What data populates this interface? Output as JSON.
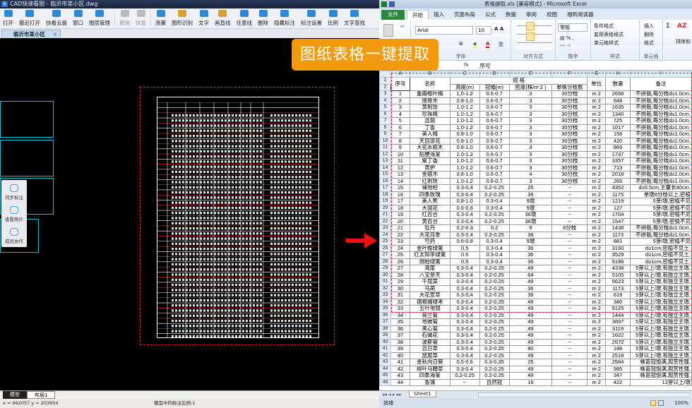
{
  "cad": {
    "title": "CAD快速看图 - 临沂市某小区.dwg",
    "toolbar": [
      {
        "label": "打开",
        "icon": "folder-open-icon",
        "color": "#2a8ad8",
        "enabled": true
      },
      {
        "label": "最近打开",
        "icon": "clock-icon",
        "color": "#2a8ad8",
        "enabled": true
      },
      {
        "label": "快看云盘",
        "icon": "cloud-icon",
        "color": "#2a8ad8",
        "enabled": true
      },
      {
        "label": "窗口",
        "icon": "window-icon",
        "color": "#2a8ad8",
        "enabled": true
      },
      {
        "label": "图层管理",
        "icon": "layers-icon",
        "color": "#2a8ad8",
        "enabled": true
      },
      {
        "label": "撤销",
        "icon": "undo-icon",
        "color": "#bbbbbb",
        "enabled": false
      },
      {
        "label": "恢复",
        "icon": "redo-icon",
        "color": "#bbbbbb",
        "enabled": false
      },
      {
        "label": "测量",
        "icon": "ruler-icon",
        "color": "#2a8ad8",
        "enabled": true
      },
      {
        "label": "图形识别",
        "icon": "image-recognize-icon",
        "color": "#e0a030",
        "enabled": true
      },
      {
        "label": "文字",
        "icon": "text-icon",
        "color": "#2a8ad8",
        "enabled": true
      },
      {
        "label": "画直线",
        "icon": "line-icon",
        "color": "#d8a030",
        "enabled": true
      },
      {
        "label": "任意线",
        "icon": "pen-icon",
        "color": "#2a8ad8",
        "enabled": true
      },
      {
        "label": "删除",
        "icon": "eraser-icon",
        "color": "#2a8ad8",
        "enabled": true
      },
      {
        "label": "隐藏标注",
        "icon": "eye-hide-icon",
        "color": "#2a8ad8",
        "enabled": true
      },
      {
        "label": "标注设置",
        "icon": "annotation-settings-icon",
        "color": "#2a8ad8",
        "enabled": true
      },
      {
        "label": "比例",
        "icon": "scale-icon",
        "color": "#2a8ad8",
        "enabled": true
      },
      {
        "label": "文字查找",
        "icon": "text-search-icon",
        "color": "#2a8ad8",
        "enabled": true
      }
    ],
    "doc_tab": "临沂市某小区",
    "side_panel": [
      {
        "label": "同步标注",
        "icon": "sync-icon"
      },
      {
        "label": "查看照片",
        "icon": "photo-icon"
      },
      {
        "label": "成员协作",
        "icon": "members-icon"
      }
    ],
    "layout_tabs": [
      "模型",
      "布局1"
    ],
    "status_coords": "x = 662057  y = 203954",
    "status_scale": "模型中的标注比例:1"
  },
  "banner": "图纸表格一键提取",
  "excel": {
    "title": "表格提取.xls  [兼容模式] - Microsoft Excel",
    "tabs": [
      "文件",
      "开始",
      "插入",
      "页面布局",
      "公式",
      "数据",
      "审阅",
      "视图",
      "福昕阅读器"
    ],
    "active_tab": "开始",
    "font_name": "Arial",
    "font_size": "10",
    "number_format": "常规",
    "styles": [
      "条件格式",
      "套用表格格式",
      "单元格样式"
    ],
    "cells": [
      "插入",
      "删除",
      "格式"
    ],
    "sort_label": "排序和",
    "groups": [
      "字体",
      "对齐方式",
      "数字",
      "样式",
      "单元格"
    ],
    "formula_value": "序号",
    "columns": [
      "A",
      "B",
      "C",
      "D",
      "E",
      "F",
      "G",
      "H",
      "I"
    ],
    "header": {
      "seq": "序号",
      "name": "名称",
      "spec": "规 格",
      "height": "高度(m)",
      "crown": "冠幅(m)",
      "density": "密度(株/m 2 )",
      "branches": "单株分枝数",
      "unit": "单位",
      "qty": "数量",
      "remark": "备注"
    },
    "unit": "m 2",
    "rows": [
      [
        "1",
        "重瓣榆叶梅",
        "1.0-1.2",
        "0.6-0.7",
        "3",
        "30分枝",
        "2656",
        "不拼栽,每分枝d≥1.0cm,"
      ],
      [
        "2",
        "接骨木",
        "0.8-1.0",
        "0.6-0.7",
        "3",
        "30分枝",
        "648",
        "不拼栽,每分枝d≥1.0cm,"
      ],
      [
        "3",
        "黄刺玫",
        "1.0-1.2",
        "0.6-0.7",
        "3",
        "30分枝",
        "1635",
        "不拼栽,每分枝d≥1.0cm,"
      ],
      [
        "4",
        "珍珠梅",
        "1.0-1.2",
        "0.6-0.7",
        "3",
        "30分枝",
        "1340",
        "不拼栽,每分枝d≥1.0cm,"
      ],
      [
        "5",
        "连翘",
        "1.0-1.2",
        "0.6-0.7",
        "3",
        "30分枝",
        "725",
        "不拼栽,每分枝d≥1.0cm,"
      ],
      [
        "6",
        "丁香",
        "1.0-1.2",
        "0.6-0.7",
        "3",
        "30分枝",
        "1017",
        "不拼栽,每分枝d≥1.0cm,"
      ],
      [
        "7",
        "美人梅",
        "0.8-1.0",
        "0.6-0.7",
        "3",
        "30分枝",
        "156",
        "不拼栽,每分枝d≥1.0cm,"
      ],
      [
        "8",
        "天目琼花",
        "0.8-1.0",
        "0.6-0.7",
        "3",
        "30分枝",
        "420",
        "不拼栽,每分枝d≥1.0cm,"
      ],
      [
        "9",
        "大花水桠木",
        "0.8-1.0",
        "0.6-0.7",
        "3",
        "30分枝",
        "869",
        "不拼栽,每分枝d≥1.0cm,"
      ],
      [
        "10",
        "贴梗海棠",
        "1.0-1.2",
        "0.6-0.7",
        "3",
        "30分枝",
        "1737",
        "不拼栽,每分枝d≥1.0cm,"
      ],
      [
        "11",
        "紫丁香",
        "1.0-1.2",
        "0.6-0.7",
        "3",
        "30分枝",
        "3357",
        "不拼栽,每分枝d≥1.0cm,"
      ],
      [
        "12",
        "黄栌",
        "1.0-1.2",
        "0.6-0.7",
        "3",
        "30分枝",
        "713",
        "不拼栽,每分枝d≥1.0cm,"
      ],
      [
        "13",
        "金银木",
        "0.8-1.0",
        "0.6-0.7",
        "4",
        "30分枝",
        "2018",
        "不拼栽,每分枝d≥1.0cm,"
      ],
      [
        "14",
        "红刺玫",
        "1.0-1.2",
        "0.6-0.7",
        "3",
        "30分枝",
        "265",
        "不拼栽,每分枝d≥1.0cm,"
      ],
      [
        "15",
        "铺地柏",
        "0.3-0.4",
        "0.2-0.25",
        "25",
        "--",
        "4352",
        "d≥0.5cm,主蔓长40cm,"
      ],
      [
        "16",
        "四季玫瑰",
        "0.3-0.4",
        "0.2-0.25",
        "36",
        "--",
        "1175",
        "单墩8分枝以上,密植"
      ],
      [
        "17",
        "美人蕉",
        "0.8-1.0",
        "0.3-0.4",
        "9墩",
        "--",
        "1219",
        "5芽/墩,密植不见"
      ],
      [
        "18",
        "大丽花",
        "0.6-0.8",
        "0.3-0.4",
        "9墩",
        "--",
        "127",
        "5芽/墩,密植不见"
      ],
      [
        "19",
        "红百合",
        "0.3-0.4",
        "0.2-0.25",
        "36墩",
        "--",
        "1704",
        "5芽/墩,密植不见"
      ],
      [
        "20",
        "黄百合",
        "0.3-0.4",
        "0.2-0.25",
        "36墩",
        "--",
        "1547",
        "5芽/墩,密植不见"
      ],
      [
        "21",
        "牡丹",
        "0.2-0.3",
        "0.2",
        "9",
        "6分枝",
        "1438",
        "不拼栽,每分枝d≥1.0cm,"
      ],
      [
        "22",
        "大花月季",
        "0.3-0.4",
        "0.2-0.25",
        "36",
        "--",
        "1173",
        "不拼栽,每分枝d≥1.0cm,"
      ],
      [
        "23",
        "芍药",
        "0.6-0.8",
        "0.3-0.4",
        "9墩",
        "--",
        "881",
        "5芽/墩,密植不见"
      ],
      [
        "24",
        "金叶榆绿篱",
        "0.5",
        "0.3-0.4",
        "36",
        "--",
        "3190",
        "d≥1cm,密植不见土,"
      ],
      [
        "25",
        "红太阳李绿篱",
        "0.5",
        "0.3-0.4",
        "36",
        "--",
        "3529",
        "d≥1cm,密植不见土,"
      ],
      [
        "26",
        "侧柏绿篱",
        "0.5",
        "0.3-0.4",
        "36",
        "--",
        "5186",
        "d≥1cm,密植不见土,"
      ],
      [
        "27",
        "鸢尾",
        "0.3-0.4",
        "0.2-0.25",
        "49",
        "--",
        "4338",
        "5芽以上/墩,有独立主墩,"
      ],
      [
        "28",
        "八宝景天",
        "0.3-0.4",
        "0.2-0.25",
        "64",
        "--",
        "5105",
        "5芽以上/墩,有独立主墩,"
      ],
      [
        "29",
        "千屈菜",
        "0.3-0.4",
        "0.2-0.25",
        "49",
        "--",
        "5623",
        "5芽以上/墩,有独立主墩,"
      ],
      [
        "30",
        "马蔺",
        "0.3-0.4",
        "0.2-0.25",
        "36",
        "--",
        "1173",
        "5芽以上/墩,有独立主墩,"
      ],
      [
        "31",
        "大花萱草",
        "0.3-0.4",
        "0.2-0.25",
        "36",
        "--",
        "619",
        "5芽以上/墩,有独立主墩,"
      ],
      [
        "32",
        "宿根福禄考",
        "0.3-0.4",
        "0.2-0.25",
        "49",
        "--",
        "380",
        "5芽以上/墩,有独立主墩,"
      ],
      [
        "33",
        "五叶地锦",
        "0.3-0.4",
        "0.2-0.25",
        "49",
        "--",
        "9125",
        "5芽以上/墩,有独立主墩,"
      ],
      [
        "34",
        "荷兰菊",
        "0.3-0.4",
        "0.2-0.25",
        "49",
        "--",
        "1444",
        "5芽以上/墩,有独立主墩,"
      ],
      [
        "35",
        "地被菊",
        "0.3-0.4",
        "0.2-0.25",
        "49",
        "--",
        "3897",
        "5芽以上/墩,有独立主墩,"
      ],
      [
        "36",
        "黑心菊",
        "0.3-0.4",
        "0.2-0.25",
        "49",
        "--",
        "3119",
        "5芽以上/墩,有独立主墩,"
      ],
      [
        "37",
        "石碱花",
        "0.3-0.4",
        "0.2-0.25",
        "49",
        "--",
        "1622",
        "5芽以上/墩,有独立主墩,"
      ],
      [
        "38",
        "波斯菊",
        "0.3-0.4",
        "0.2-0.25",
        "49",
        "--",
        "2572",
        "5芽以上/墩,有独立主墩,"
      ],
      [
        "39",
        "百日草",
        "0.3-0.4",
        "0.2-0.25",
        "80",
        "--",
        "188",
        "5芽以上/墩,有独立主墩,"
      ],
      [
        "40",
        "鼠尾草",
        "0.3-0.4",
        "0.2-0.25",
        "49",
        "--",
        "2518",
        "5芽以上/墩,有独立主墩,"
      ],
      [
        "41",
        "金秋向日葵",
        "0.5-0.6",
        "0.3-0.35",
        "25",
        "--",
        "2584",
        "株苗冠饱满,观赏性强,"
      ],
      [
        "42",
        "柳叶马鞭草",
        "0.3-0.4",
        "0.2-0.25",
        "49",
        "--",
        "985",
        "株苗冠饱满,观赏性强,"
      ],
      [
        "43",
        "四季海棠",
        "0.2-0.25",
        "0.2-0.25",
        "49",
        "--",
        "347",
        "株苗冠饱满,观赏性强,"
      ],
      [
        "44",
        "香蒲",
        "--",
        "自然冠",
        "16",
        "--",
        "422",
        "12芽以上/墩"
      ]
    ],
    "sheet_tab": "Sheet1",
    "status": "就绪",
    "zoom": "100%",
    "highlight_color": "#e02020"
  }
}
